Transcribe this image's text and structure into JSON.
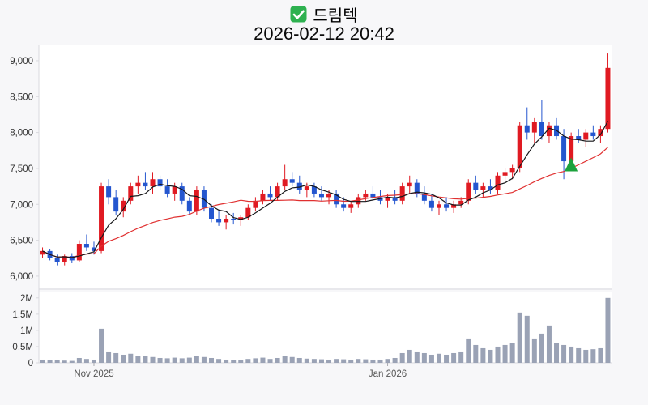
{
  "header": {
    "title": "드림텍",
    "timestamp": "2026-02-12 20:42",
    "check_icon_color": "#2eb150"
  },
  "chart_data": {
    "type": "candlestick",
    "ylim": [
      5875,
      9225
    ],
    "volume_ylim": [
      0,
      2.07
    ],
    "volume_unit": "M",
    "up_color": "#e01a22",
    "down_color": "#2456cf",
    "ma_short_window": 5,
    "ma_short_color": "#17171a",
    "ma_long_window": 20,
    "ma_long_color": "#e03030",
    "volume_color": "#9aa2b5",
    "panel_color": "#ffffff",
    "axis_color": "#d9d9de",
    "label_color": "#333333",
    "y_ticks": [
      {
        "label": "6,000",
        "value": 6000
      },
      {
        "label": "6,500",
        "value": 6500
      },
      {
        "label": "7,000",
        "value": 7000
      },
      {
        "label": "7,500",
        "value": 7500
      },
      {
        "label": "8,000",
        "value": 8000
      },
      {
        "label": "8,500",
        "value": 8500
      },
      {
        "label": "9,000",
        "value": 9000
      }
    ],
    "volume_ticks": [
      {
        "label": "0",
        "value": 0
      },
      {
        "label": "0.5M",
        "value": 0.5
      },
      {
        "label": "1M",
        "value": 1
      },
      {
        "label": "1.5M",
        "value": 1.5
      },
      {
        "label": "2M",
        "value": 2
      }
    ],
    "x_labels": [
      {
        "index": 7,
        "label": "Nov 2025"
      },
      {
        "index": 47,
        "label": "Jan 2026"
      }
    ],
    "marker": {
      "index": 72,
      "price": 7550,
      "color": "#1ca23c",
      "shape": "triangle-up"
    },
    "candles": [
      [
        6300,
        6400,
        6250,
        6350,
        0.1
      ],
      [
        6350,
        6380,
        6220,
        6250,
        0.08
      ],
      [
        6250,
        6300,
        6150,
        6200,
        0.09
      ],
      [
        6200,
        6300,
        6150,
        6280,
        0.07
      ],
      [
        6280,
        6320,
        6180,
        6220,
        0.06
      ],
      [
        6220,
        6500,
        6200,
        6450,
        0.15
      ],
      [
        6450,
        6580,
        6350,
        6400,
        0.12
      ],
      [
        6400,
        6480,
        6300,
        6350,
        0.1
      ],
      [
        6350,
        7300,
        6320,
        7250,
        1.05
      ],
      [
        7250,
        7350,
        7000,
        7100,
        0.35
      ],
      [
        7100,
        7200,
        6850,
        6900,
        0.3
      ],
      [
        6900,
        7100,
        6820,
        7050,
        0.25
      ],
      [
        7050,
        7300,
        7000,
        7250,
        0.28
      ],
      [
        7250,
        7400,
        7150,
        7300,
        0.22
      ],
      [
        7300,
        7450,
        7200,
        7250,
        0.2
      ],
      [
        7250,
        7450,
        7150,
        7350,
        0.18
      ],
      [
        7350,
        7400,
        7200,
        7250,
        0.15
      ],
      [
        7250,
        7350,
        7100,
        7150,
        0.14
      ],
      [
        7150,
        7300,
        7050,
        7250,
        0.16
      ],
      [
        7250,
        7300,
        7000,
        7050,
        0.14
      ],
      [
        7050,
        7100,
        6850,
        6900,
        0.16
      ],
      [
        6900,
        7250,
        6850,
        7200,
        0.2
      ],
      [
        7200,
        7250,
        6900,
        6950,
        0.18
      ],
      [
        6950,
        7000,
        6750,
        6800,
        0.15
      ],
      [
        6800,
        6900,
        6700,
        6750,
        0.12
      ],
      [
        6750,
        6850,
        6650,
        6800,
        0.1
      ],
      [
        6800,
        6880,
        6720,
        6780,
        0.09
      ],
      [
        6780,
        6850,
        6700,
        6820,
        0.08
      ],
      [
        6820,
        7000,
        6780,
        6950,
        0.12
      ],
      [
        6950,
        7100,
        6900,
        7050,
        0.14
      ],
      [
        7050,
        7200,
        7000,
        7150,
        0.16
      ],
      [
        7150,
        7250,
        7050,
        7100,
        0.12
      ],
      [
        7100,
        7300,
        7050,
        7250,
        0.15
      ],
      [
        7250,
        7550,
        7200,
        7350,
        0.22
      ],
      [
        7350,
        7450,
        7250,
        7300,
        0.18
      ],
      [
        7300,
        7400,
        7150,
        7200,
        0.15
      ],
      [
        7200,
        7300,
        7100,
        7250,
        0.13
      ],
      [
        7250,
        7300,
        7100,
        7150,
        0.12
      ],
      [
        7150,
        7250,
        7050,
        7100,
        0.11
      ],
      [
        7100,
        7200,
        7000,
        7150,
        0.1
      ],
      [
        7150,
        7200,
        6950,
        7000,
        0.12
      ],
      [
        7000,
        7100,
        6900,
        6950,
        0.11
      ],
      [
        6950,
        7050,
        6880,
        7000,
        0.1
      ],
      [
        7000,
        7150,
        6950,
        7100,
        0.12
      ],
      [
        7100,
        7200,
        7050,
        7150,
        0.11
      ],
      [
        7150,
        7250,
        7050,
        7100,
        0.1
      ],
      [
        7100,
        7200,
        7000,
        7050,
        0.1
      ],
      [
        7050,
        7150,
        6950,
        7100,
        0.12
      ],
      [
        7100,
        7200,
        7000,
        7050,
        0.15
      ],
      [
        7050,
        7300,
        7000,
        7250,
        0.3
      ],
      [
        7250,
        7400,
        7150,
        7300,
        0.4
      ],
      [
        7300,
        7350,
        7100,
        7150,
        0.35
      ],
      [
        7150,
        7250,
        7000,
        7050,
        0.3
      ],
      [
        7050,
        7150,
        6900,
        6950,
        0.25
      ],
      [
        6950,
        7050,
        6850,
        7000,
        0.28
      ],
      [
        7000,
        7100,
        6900,
        6950,
        0.25
      ],
      [
        6950,
        7050,
        6880,
        7000,
        0.3
      ],
      [
        7000,
        7100,
        6950,
        7050,
        0.35
      ],
      [
        7050,
        7350,
        7000,
        7300,
        0.75
      ],
      [
        7300,
        7400,
        7150,
        7200,
        0.55
      ],
      [
        7200,
        7300,
        7100,
        7250,
        0.45
      ],
      [
        7250,
        7350,
        7150,
        7200,
        0.4
      ],
      [
        7200,
        7450,
        7150,
        7400,
        0.5
      ],
      [
        7400,
        7500,
        7300,
        7450,
        0.55
      ],
      [
        7450,
        7550,
        7350,
        7500,
        0.6
      ],
      [
        7500,
        8150,
        7450,
        8100,
        1.55
      ],
      [
        8100,
        8350,
        7900,
        8000,
        1.45
      ],
      [
        8000,
        8200,
        7850,
        8150,
        0.75
      ],
      [
        8150,
        8450,
        7900,
        7950,
        0.9
      ],
      [
        7950,
        8150,
        7850,
        8100,
        1.15
      ],
      [
        8100,
        8200,
        7900,
        7950,
        0.6
      ],
      [
        7950,
        8050,
        7350,
        7600,
        0.55
      ],
      [
        7600,
        8000,
        7550,
        7950,
        0.5
      ],
      [
        7950,
        8050,
        7850,
        7900,
        0.45
      ],
      [
        7900,
        8050,
        7800,
        8000,
        0.4
      ],
      [
        8000,
        8100,
        7900,
        7950,
        0.42
      ],
      [
        7950,
        8100,
        7850,
        8050,
        0.45
      ],
      [
        8050,
        9100,
        8000,
        8900,
        2.0
      ]
    ]
  }
}
